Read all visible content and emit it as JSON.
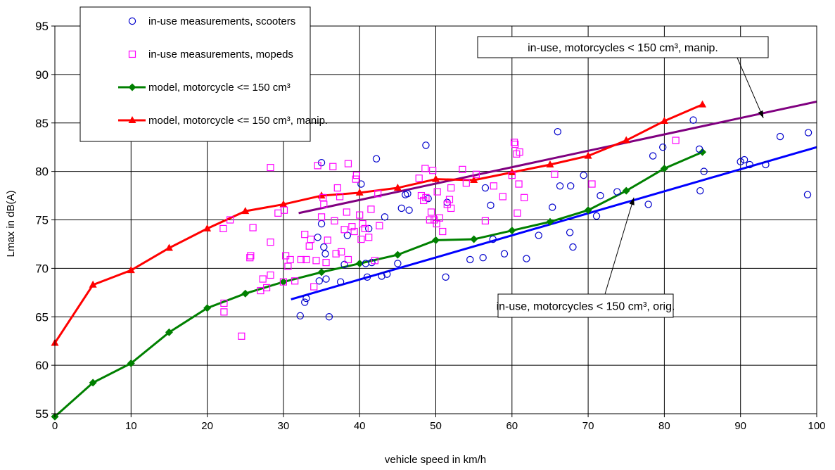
{
  "chart_data": {
    "type": "scatter",
    "title": "",
    "xlabel": "vehicle speed in km/h",
    "ylabel": "Lmax in dB(A)",
    "xlim": [
      0,
      100
    ],
    "ylim": [
      55,
      95
    ],
    "x_ticks": [
      0,
      10,
      20,
      30,
      40,
      50,
      60,
      70,
      80,
      90,
      100
    ],
    "y_ticks": [
      55,
      60,
      65,
      70,
      75,
      80,
      85,
      90,
      95
    ],
    "grid": true,
    "legend_position": "top-left",
    "series": [
      {
        "name": "in-use measurements, scooters",
        "kind": "scatter",
        "marker": "circle",
        "color": "#0000cc",
        "points": [
          [
            32.2,
            65.1
          ],
          [
            32.8,
            66.5
          ],
          [
            33.0,
            66.9
          ],
          [
            34.5,
            73.2
          ],
          [
            34.7,
            68.7
          ],
          [
            35.0,
            80.9
          ],
          [
            35.0,
            74.6
          ],
          [
            35.3,
            72.2
          ],
          [
            35.5,
            71.5
          ],
          [
            35.6,
            68.9
          ],
          [
            36.0,
            65.0
          ],
          [
            37.5,
            68.6
          ],
          [
            38.0,
            70.4
          ],
          [
            38.4,
            73.4
          ],
          [
            40.2,
            78.7
          ],
          [
            40.8,
            70.5
          ],
          [
            41.0,
            69.1
          ],
          [
            41.2,
            74.1
          ],
          [
            41.6,
            70.6
          ],
          [
            42.2,
            81.3
          ],
          [
            42.9,
            69.2
          ],
          [
            43.3,
            75.3
          ],
          [
            43.6,
            69.4
          ],
          [
            45.0,
            70.5
          ],
          [
            45.5,
            76.2
          ],
          [
            46.0,
            77.6
          ],
          [
            46.3,
            77.7
          ],
          [
            46.5,
            76.0
          ],
          [
            48.7,
            82.7
          ],
          [
            49.0,
            77.2
          ],
          [
            51.3,
            69.1
          ],
          [
            51.5,
            76.8
          ],
          [
            54.5,
            70.9
          ],
          [
            56.2,
            71.1
          ],
          [
            56.5,
            78.3
          ],
          [
            57.2,
            76.5
          ],
          [
            57.5,
            73.0
          ],
          [
            59.0,
            71.5
          ],
          [
            61.9,
            71.0
          ],
          [
            63.5,
            73.4
          ],
          [
            65.3,
            76.3
          ],
          [
            66.0,
            84.1
          ],
          [
            66.3,
            78.5
          ],
          [
            67.6,
            73.7
          ],
          [
            67.7,
            78.5
          ],
          [
            68.0,
            72.2
          ],
          [
            69.4,
            79.6
          ],
          [
            71.1,
            75.4
          ],
          [
            71.6,
            77.5
          ],
          [
            73.8,
            77.9
          ],
          [
            77.9,
            76.6
          ],
          [
            78.5,
            81.6
          ],
          [
            79.8,
            82.5
          ],
          [
            83.8,
            85.3
          ],
          [
            84.6,
            82.3
          ],
          [
            84.7,
            78.0
          ],
          [
            85.2,
            80.0
          ],
          [
            90.0,
            81.0
          ],
          [
            90.5,
            81.2
          ],
          [
            91.2,
            80.7
          ],
          [
            93.3,
            80.7
          ],
          [
            95.2,
            83.6
          ],
          [
            98.9,
            84.0
          ],
          [
            98.8,
            77.6
          ]
        ]
      },
      {
        "name": "in-use measurements, mopeds",
        "kind": "scatter",
        "marker": "square",
        "color": "#ff00ff",
        "points": [
          [
            22.1,
            74.1
          ],
          [
            22.2,
            66.4
          ],
          [
            22.2,
            65.5
          ],
          [
            23.0,
            75.0
          ],
          [
            24.5,
            63.0
          ],
          [
            25.6,
            71.1
          ],
          [
            25.7,
            71.3
          ],
          [
            26.0,
            74.2
          ],
          [
            27.0,
            67.7
          ],
          [
            27.3,
            68.9
          ],
          [
            27.8,
            68.0
          ],
          [
            28.3,
            69.3
          ],
          [
            28.3,
            72.7
          ],
          [
            28.3,
            80.4
          ],
          [
            29.3,
            75.7
          ],
          [
            30.0,
            68.6
          ],
          [
            30.1,
            76.0
          ],
          [
            30.3,
            71.3
          ],
          [
            30.6,
            70.2
          ],
          [
            30.9,
            70.9
          ],
          [
            31.5,
            68.7
          ],
          [
            32.3,
            70.9
          ],
          [
            32.8,
            73.5
          ],
          [
            33.0,
            70.9
          ],
          [
            33.4,
            72.3
          ],
          [
            33.6,
            73.0
          ],
          [
            34.0,
            68.1
          ],
          [
            34.3,
            70.8
          ],
          [
            34.5,
            80.6
          ],
          [
            35.0,
            75.3
          ],
          [
            35.2,
            77.3
          ],
          [
            35.3,
            76.6
          ],
          [
            35.6,
            70.6
          ],
          [
            35.8,
            72.9
          ],
          [
            36.5,
            80.5
          ],
          [
            36.7,
            74.9
          ],
          [
            36.9,
            71.5
          ],
          [
            37.1,
            78.3
          ],
          [
            37.4,
            77.4
          ],
          [
            37.6,
            71.7
          ],
          [
            38.0,
            74.0
          ],
          [
            38.3,
            75.8
          ],
          [
            38.5,
            70.9
          ],
          [
            38.5,
            80.8
          ],
          [
            39.0,
            74.3
          ],
          [
            39.3,
            73.8
          ],
          [
            39.5,
            79.2
          ],
          [
            39.6,
            79.6
          ],
          [
            40.0,
            75.5
          ],
          [
            40.2,
            73.0
          ],
          [
            40.4,
            74.6
          ],
          [
            40.7,
            74.1
          ],
          [
            41.2,
            73.2
          ],
          [
            41.5,
            76.1
          ],
          [
            42.0,
            70.8
          ],
          [
            42.4,
            77.7
          ],
          [
            42.6,
            74.4
          ],
          [
            47.8,
            79.3
          ],
          [
            48.1,
            77.5
          ],
          [
            48.4,
            77.0
          ],
          [
            48.6,
            80.3
          ],
          [
            48.7,
            77.3
          ],
          [
            49.2,
            75.0
          ],
          [
            49.4,
            75.8
          ],
          [
            49.6,
            80.1
          ],
          [
            49.8,
            75.0
          ],
          [
            50.1,
            74.6
          ],
          [
            50.2,
            77.9
          ],
          [
            50.5,
            75.2
          ],
          [
            50.9,
            73.8
          ],
          [
            51.5,
            76.6
          ],
          [
            51.8,
            77.1
          ],
          [
            52.0,
            76.2
          ],
          [
            52.0,
            78.3
          ],
          [
            53.5,
            80.2
          ],
          [
            54.0,
            78.8
          ],
          [
            55.3,
            79.7
          ],
          [
            56.5,
            74.9
          ],
          [
            57.6,
            78.5
          ],
          [
            58.8,
            77.4
          ],
          [
            60.0,
            79.6
          ],
          [
            60.3,
            83.0
          ],
          [
            60.4,
            82.8
          ],
          [
            60.6,
            81.8
          ],
          [
            60.7,
            75.7
          ],
          [
            60.9,
            78.7
          ],
          [
            61.0,
            82.0
          ],
          [
            61.6,
            77.3
          ],
          [
            65.6,
            79.7
          ],
          [
            70.5,
            78.7
          ],
          [
            81.5,
            83.2
          ]
        ]
      },
      {
        "name": "model, motorcycle <= 150 cm³",
        "kind": "line",
        "marker": "diamond",
        "color": "#008000",
        "points": [
          [
            0,
            54.7
          ],
          [
            5,
            58.2
          ],
          [
            10,
            60.2
          ],
          [
            15,
            63.4
          ],
          [
            20,
            65.9
          ],
          [
            25,
            67.4
          ],
          [
            30,
            68.6
          ],
          [
            35,
            69.6
          ],
          [
            40,
            70.5
          ],
          [
            45,
            71.4
          ],
          [
            50,
            72.9
          ],
          [
            55,
            73.0
          ],
          [
            60,
            73.9
          ],
          [
            65,
            74.8
          ],
          [
            70,
            76.0
          ],
          [
            75,
            78.0
          ],
          [
            80,
            80.3
          ],
          [
            85,
            82.0
          ]
        ]
      },
      {
        "name": "model, motorcycle <= 150 cm³, manip.",
        "kind": "line",
        "marker": "triangle",
        "color": "#ff0000",
        "points": [
          [
            0,
            62.3
          ],
          [
            5,
            68.3
          ],
          [
            10,
            69.8
          ],
          [
            15,
            72.1
          ],
          [
            20,
            74.1
          ],
          [
            25,
            75.9
          ],
          [
            30,
            76.6
          ],
          [
            35,
            77.5
          ],
          [
            40,
            77.8
          ],
          [
            45,
            78.3
          ],
          [
            50,
            79.2
          ],
          [
            55,
            79.1
          ],
          [
            60,
            79.9
          ],
          [
            65,
            80.7
          ],
          [
            70,
            81.6
          ],
          [
            75,
            83.2
          ],
          [
            80,
            85.2
          ],
          [
            85,
            86.9
          ]
        ]
      },
      {
        "name": "in-use, motorcycles < 150 cm³, manip.",
        "kind": "trend",
        "color": "#800080",
        "points": [
          [
            32,
            75.7
          ],
          [
            100,
            87.2
          ]
        ]
      },
      {
        "name": "in-use, motorcycles < 150 cm³, orig.",
        "kind": "trend",
        "color": "#0000ff",
        "points": [
          [
            31,
            66.8
          ],
          [
            100,
            82.5
          ]
        ]
      }
    ],
    "legend": [
      "in-use measurements, scooters",
      "in-use measurements, mopeds",
      "model, motorcycle <= 150 cm³",
      "model, motorcycle <= 150 cm³, manip."
    ],
    "annotations": [
      {
        "text": "in-use, motorcycles < 150 cm³, manip.",
        "points_to": [
          93,
          85.5
        ]
      },
      {
        "text": "in-use, motorcycles < 150 cm³, orig.",
        "points_to": [
          76,
          77.3
        ]
      }
    ]
  }
}
